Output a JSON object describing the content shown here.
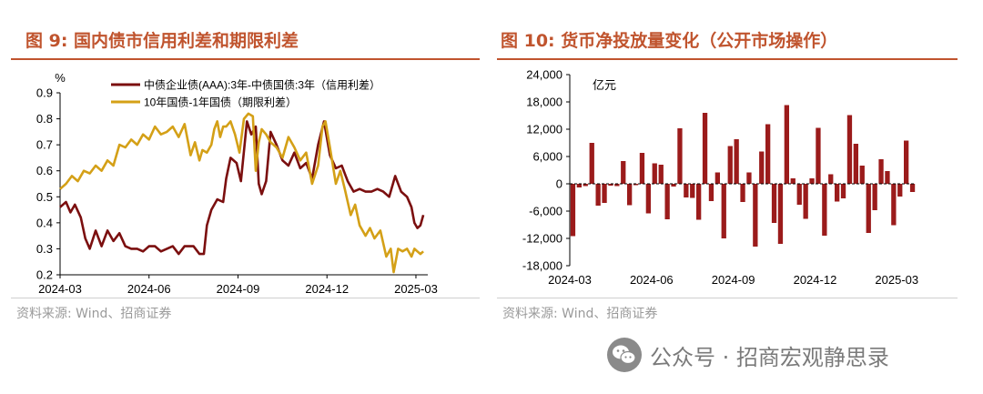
{
  "left_panel": {
    "title": "图 9:  国内债市信用利差和期限利差",
    "source": "资料来源:  Wind、招商证券"
  },
  "right_panel": {
    "title": "图 10:  货币净投放量变化（公开市场操作）",
    "source": "资料来源:  Wind、招商证券"
  },
  "watermark": {
    "icon": "wechat-icon",
    "text": "公众号 · 招商宏观静思录"
  },
  "colors": {
    "accent": "#c0542e",
    "credit_spread": "#7b0f0f",
    "term_spread": "#d4a017",
    "bar": "#9b1b1b"
  },
  "chart_data": [
    {
      "type": "line",
      "unit_label": "%",
      "ylim": [
        0.2,
        0.9
      ],
      "yticks": [
        "0.9",
        "0.8",
        "0.7",
        "0.6",
        "0.5",
        "0.4",
        "0.3",
        "0.2"
      ],
      "ytick_values": [
        0.9,
        0.8,
        0.7,
        0.6,
        0.5,
        0.4,
        0.3,
        0.2
      ],
      "xticks": [
        "2024-03",
        "2024-06",
        "2024-09",
        "2024-12",
        "2025-03"
      ],
      "xtick_positions": [
        0,
        3,
        6,
        9,
        12
      ],
      "xlim": [
        0,
        12.4
      ],
      "legend_position": "top",
      "series": [
        {
          "name": "中债企业债(AAA):3年-中债国债:3年（信用利差）",
          "color": "#7b0f0f",
          "points": [
            [
              0,
              0.46
            ],
            [
              0.2,
              0.48
            ],
            [
              0.35,
              0.44
            ],
            [
              0.5,
              0.47
            ],
            [
              0.7,
              0.42
            ],
            [
              0.85,
              0.34
            ],
            [
              1.0,
              0.3
            ],
            [
              1.2,
              0.37
            ],
            [
              1.4,
              0.31
            ],
            [
              1.6,
              0.37
            ],
            [
              1.8,
              0.33
            ],
            [
              2.0,
              0.36
            ],
            [
              2.2,
              0.31
            ],
            [
              2.4,
              0.3
            ],
            [
              2.6,
              0.3
            ],
            [
              2.8,
              0.29
            ],
            [
              3.0,
              0.31
            ],
            [
              3.2,
              0.31
            ],
            [
              3.4,
              0.29
            ],
            [
              3.6,
              0.3
            ],
            [
              3.8,
              0.31
            ],
            [
              4.0,
              0.28
            ],
            [
              4.2,
              0.31
            ],
            [
              4.5,
              0.31
            ],
            [
              4.7,
              0.28
            ],
            [
              4.85,
              0.28
            ],
            [
              4.95,
              0.39
            ],
            [
              5.1,
              0.45
            ],
            [
              5.3,
              0.49
            ],
            [
              5.5,
              0.48
            ],
            [
              5.6,
              0.57
            ],
            [
              5.75,
              0.65
            ],
            [
              5.95,
              0.63
            ],
            [
              6.1,
              0.56
            ],
            [
              6.3,
              0.79
            ],
            [
              6.45,
              0.74
            ],
            [
              6.6,
              0.77
            ],
            [
              6.7,
              0.55
            ],
            [
              6.8,
              0.51
            ],
            [
              6.95,
              0.56
            ],
            [
              7.1,
              0.75
            ],
            [
              7.3,
              0.7
            ],
            [
              7.5,
              0.64
            ],
            [
              7.7,
              0.62
            ],
            [
              7.9,
              0.67
            ],
            [
              8.1,
              0.61
            ],
            [
              8.3,
              0.63
            ],
            [
              8.5,
              0.57
            ],
            [
              8.7,
              0.7
            ],
            [
              8.9,
              0.79
            ],
            [
              9.1,
              0.66
            ],
            [
              9.3,
              0.61
            ],
            [
              9.5,
              0.62
            ],
            [
              9.7,
              0.56
            ],
            [
              9.9,
              0.52
            ],
            [
              10.1,
              0.53
            ],
            [
              10.3,
              0.52
            ],
            [
              10.5,
              0.52
            ],
            [
              10.7,
              0.53
            ],
            [
              10.9,
              0.52
            ],
            [
              11.1,
              0.5
            ],
            [
              11.3,
              0.58
            ],
            [
              11.5,
              0.52
            ],
            [
              11.7,
              0.5
            ],
            [
              11.85,
              0.46
            ],
            [
              11.95,
              0.4
            ],
            [
              12.05,
              0.38
            ],
            [
              12.15,
              0.39
            ],
            [
              12.25,
              0.43
            ]
          ]
        },
        {
          "name": "10年国债-1年国债（期限利差）",
          "color": "#d4a017",
          "points": [
            [
              0,
              0.53
            ],
            [
              0.2,
              0.55
            ],
            [
              0.4,
              0.58
            ],
            [
              0.6,
              0.56
            ],
            [
              0.8,
              0.6
            ],
            [
              1.0,
              0.59
            ],
            [
              1.2,
              0.62
            ],
            [
              1.4,
              0.6
            ],
            [
              1.6,
              0.64
            ],
            [
              1.8,
              0.62
            ],
            [
              2.0,
              0.7
            ],
            [
              2.2,
              0.69
            ],
            [
              2.4,
              0.72
            ],
            [
              2.6,
              0.7
            ],
            [
              2.8,
              0.74
            ],
            [
              3.0,
              0.72
            ],
            [
              3.2,
              0.77
            ],
            [
              3.4,
              0.74
            ],
            [
              3.6,
              0.75
            ],
            [
              3.8,
              0.77
            ],
            [
              4.0,
              0.73
            ],
            [
              4.2,
              0.78
            ],
            [
              4.4,
              0.66
            ],
            [
              4.55,
              0.71
            ],
            [
              4.7,
              0.64
            ],
            [
              4.8,
              0.68
            ],
            [
              4.95,
              0.67
            ],
            [
              5.1,
              0.7
            ],
            [
              5.2,
              0.76
            ],
            [
              5.3,
              0.79
            ],
            [
              5.4,
              0.73
            ],
            [
              5.5,
              0.77
            ],
            [
              5.6,
              0.77
            ],
            [
              5.75,
              0.79
            ],
            [
              5.9,
              0.74
            ],
            [
              6.05,
              0.67
            ],
            [
              6.2,
              0.8
            ],
            [
              6.35,
              0.82
            ],
            [
              6.5,
              0.81
            ],
            [
              6.6,
              0.6
            ],
            [
              6.7,
              0.71
            ],
            [
              6.8,
              0.76
            ],
            [
              6.95,
              0.74
            ],
            [
              7.1,
              0.71
            ],
            [
              7.3,
              0.69
            ],
            [
              7.5,
              0.65
            ],
            [
              7.7,
              0.73
            ],
            [
              7.9,
              0.69
            ],
            [
              8.1,
              0.64
            ],
            [
              8.3,
              0.67
            ],
            [
              8.5,
              0.55
            ],
            [
              8.7,
              0.62
            ],
            [
              8.85,
              0.77
            ],
            [
              8.95,
              0.79
            ],
            [
              9.1,
              0.69
            ],
            [
              9.3,
              0.55
            ],
            [
              9.45,
              0.6
            ],
            [
              9.6,
              0.53
            ],
            [
              9.8,
              0.43
            ],
            [
              9.95,
              0.47
            ],
            [
              10.1,
              0.39
            ],
            [
              10.3,
              0.35
            ],
            [
              10.45,
              0.38
            ],
            [
              10.6,
              0.34
            ],
            [
              10.8,
              0.37
            ],
            [
              11.0,
              0.27
            ],
            [
              11.15,
              0.3
            ],
            [
              11.25,
              0.21
            ],
            [
              11.4,
              0.3
            ],
            [
              11.55,
              0.29
            ],
            [
              11.7,
              0.3
            ],
            [
              11.85,
              0.27
            ],
            [
              11.95,
              0.3
            ],
            [
              12.05,
              0.29
            ],
            [
              12.15,
              0.28
            ],
            [
              12.25,
              0.29
            ]
          ]
        }
      ]
    },
    {
      "type": "bar",
      "unit_label": "亿元",
      "ylim": [
        -18000,
        24000
      ],
      "yticks": [
        "24,000",
        "18,000",
        "12,000",
        "6,000",
        "0",
        "-6,000",
        "-12,000",
        "-18,000"
      ],
      "ytick_values": [
        24000,
        18000,
        12000,
        6000,
        0,
        -6000,
        -12000,
        -18000
      ],
      "xticks": [
        "2024-03",
        "2024-06",
        "2024-09",
        "2024-12",
        "2025-03"
      ],
      "xtick_positions": [
        0,
        13,
        26,
        39,
        52
      ],
      "color": "#9b1b1b",
      "values": [
        -11500,
        -800,
        -500,
        9000,
        -4800,
        -4200,
        -400,
        -500,
        5000,
        -4700,
        -300,
        6800,
        -6500,
        4500,
        4200,
        -7800,
        -600,
        12200,
        -3000,
        -3100,
        -7900,
        15600,
        -3800,
        2500,
        -12000,
        8300,
        9800,
        -4000,
        2500,
        -13800,
        7100,
        13100,
        -8600,
        -13200,
        17300,
        1200,
        -4600,
        -7700,
        1200,
        12300,
        -11400,
        2100,
        -3900,
        -3200,
        15100,
        8800,
        4000,
        -10800,
        -5800,
        5400,
        2800,
        -9100,
        -2800,
        9500,
        -1800
      ]
    }
  ]
}
